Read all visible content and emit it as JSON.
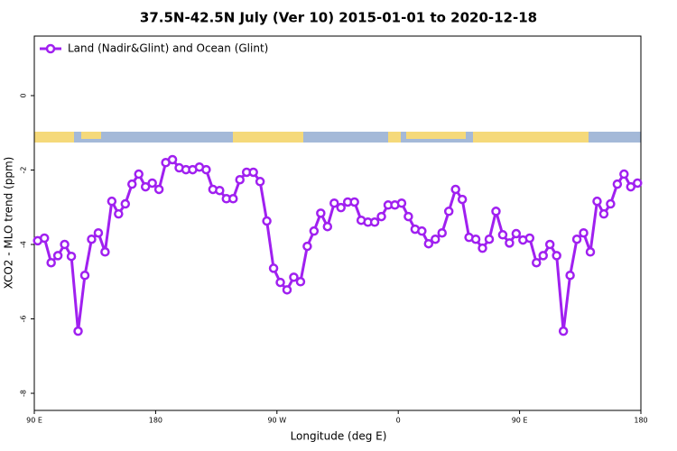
{
  "chart_data": {
    "type": "line",
    "title": "37.5N-42.5N July (Ver 10)   2015-01-01 to 2020-12-18",
    "x_label": "Longitude (deg E)",
    "y_label": "XCO2 - MLO trend (ppm)",
    "xlim": [
      90,
      540
    ],
    "ylim": [
      -8.46,
      1.6
    ],
    "xticks": [
      {
        "value": 90,
        "label": "90 E"
      },
      180,
      {
        "value": 270,
        "label": "90 W"
      },
      {
        "value": 360,
        "label": "0"
      },
      {
        "value": 450,
        "label": "90 E"
      },
      {
        "value": 540,
        "label": "180"
      }
    ],
    "yticks": [
      0,
      -2,
      -4,
      -6,
      -8
    ],
    "legend_position": "upper left",
    "grid": false,
    "series": [
      {
        "name": "Land (Nadir&Glint) and Ocean (Glint)",
        "color": "#a020f0",
        "x": [
          92.5,
          97.5,
          102.5,
          107.5,
          112.5,
          117.5,
          122.5,
          127.5,
          132.5,
          137.5,
          142.5,
          147.5,
          152.5,
          157.5,
          162.5,
          167.5,
          172.5,
          177.5,
          182.5,
          187.5,
          192.5,
          197.5,
          202.5,
          207.5,
          212.5,
          217.5,
          222.5,
          227.5,
          232.5,
          237.5,
          242.5,
          247.5,
          252.5,
          257.5,
          262.5,
          267.5,
          272.5,
          277.5,
          282.5,
          287.5,
          292.5,
          297.5,
          302.5,
          307.5,
          312.5,
          317.5,
          322.5,
          327.5,
          332.5,
          337.5,
          342.5,
          347.5,
          352.5,
          357.5,
          362.5,
          367.5,
          372.5,
          377.5,
          382.5,
          387.5,
          392.5,
          397.5,
          402.5,
          407.5,
          412.5,
          417.5,
          422.5,
          427.5,
          432.5,
          437.5,
          442.5,
          447.5,
          452.5,
          457.5,
          462.5,
          467.5,
          472.5,
          477.5,
          482.5,
          487.5,
          492.5,
          497.5,
          502.5,
          507.5,
          512.5,
          517.5,
          522.5,
          527.5,
          532.5,
          537.5
        ],
        "values": [
          -3.9,
          -3.83,
          -4.49,
          -4.3,
          -4.0,
          -4.32,
          -6.33,
          -4.83,
          -3.86,
          -3.69,
          -4.2,
          -2.84,
          -3.18,
          -2.91,
          -2.38,
          -2.11,
          -2.45,
          -2.35,
          -2.52,
          -1.8,
          -1.72,
          -1.94,
          -1.99,
          -1.99,
          -1.92,
          -1.99,
          -2.52,
          -2.55,
          -2.77,
          -2.77,
          -2.26,
          -2.06,
          -2.06,
          -2.31,
          -3.37,
          -4.64,
          -5.02,
          -5.22,
          -4.88,
          -5.0,
          -4.05,
          -3.64,
          -3.16,
          -3.52,
          -2.89,
          -3.01,
          -2.86,
          -2.86,
          -3.35,
          -3.4,
          -3.4,
          -3.25,
          -2.94,
          -2.94,
          -2.89,
          -3.25,
          -3.59,
          -3.64,
          -3.98,
          -3.86,
          -3.69,
          -3.11,
          -2.52,
          -2.79,
          -3.81,
          -3.86,
          -4.1,
          -3.86,
          -3.11,
          -3.74,
          -3.96,
          -3.71,
          -3.88,
          -3.83,
          -4.49,
          -4.3,
          -4.0,
          -4.3,
          -6.33,
          -4.83,
          -3.86,
          -3.69,
          -4.2,
          -2.84,
          -3.18,
          -2.91,
          -2.38,
          -2.11,
          -2.45,
          -2.35
        ]
      }
    ]
  }
}
